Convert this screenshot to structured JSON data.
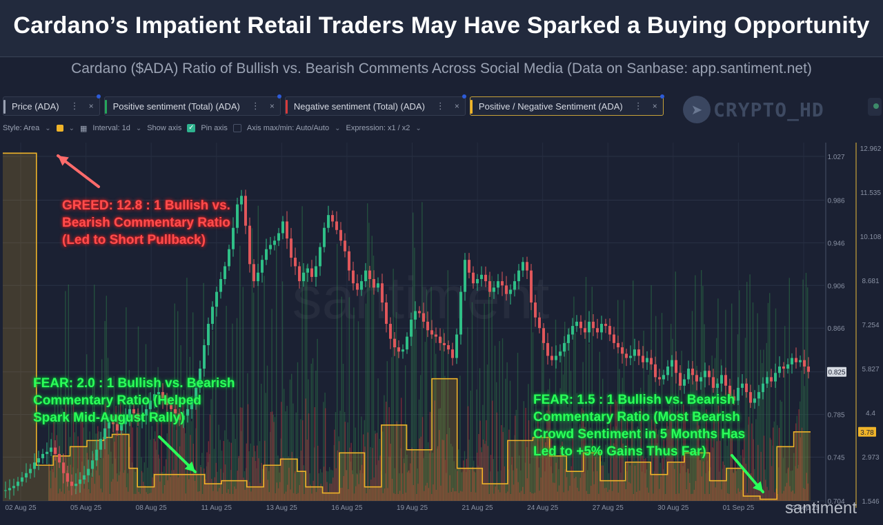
{
  "header": {
    "title": "Cardano’s Impatient Retail Traders May Have Sparked a Buying Opportunity",
    "subtitle": "Cardano ($ADA) Ratio of Bullish vs. Bearish Comments Across Social Media (Data on Sanbase: app.santiment.net)"
  },
  "metrics": [
    {
      "label": "Price (ADA)",
      "color": "#9aa1b2",
      "menu": "⋮",
      "close": "×"
    },
    {
      "label": "Positive sentiment (Total) (ADA)",
      "color": "#26a65b",
      "menu": "⋮",
      "close": "×"
    },
    {
      "label": "Negative sentiment (Total) (ADA)",
      "color": "#d63b3b",
      "menu": "⋮",
      "close": "×"
    },
    {
      "label": "Positive / Negative Sentiment (ADA)",
      "color": "#f0b429",
      "menu": "⋮",
      "close": "×"
    }
  ],
  "options": {
    "style": "Style: Area",
    "interval": "Interval: 1d",
    "show_axis": "Show axis",
    "pin_axis": "Pin axis",
    "axis_minmax": "Axis max/min: Auto/Auto",
    "expression": "Expression: x1 / x2",
    "area_color": "#f0b429"
  },
  "watermarks": {
    "top_right": "CRYPTO_HD",
    "center": "santiment",
    "bottom": "santiment"
  },
  "annotations": {
    "greed": [
      "GREED: 12.8 : 1 Bullish vs.",
      "Bearish Commentary Ratio",
      "(Led to Short Pullback)"
    ],
    "fear_left": [
      "FEAR: 2.0 : 1 Bullish vs. Bearish",
      "Commentary Ratio (Helped",
      "Spark Mid-August Rally)"
    ],
    "fear_right": [
      "FEAR: 1.5 : 1 Bullish vs. Bearish",
      "Commentary Ratio (Most Bearish",
      "Crowd Sentiment in 5 Months Has",
      "Led to +5% Gains Thus Far)"
    ]
  },
  "chart_data": {
    "type": "line",
    "x_ticks": [
      "02 Aug 25",
      "05 Aug 25",
      "08 Aug 25",
      "11 Aug 25",
      "13 Aug 25",
      "16 Aug 25",
      "19 Aug 25",
      "21 Aug 25",
      "24 Aug 25",
      "27 Aug 25",
      "30 Aug 25",
      "01 Sep 25",
      "03 Sep 25"
    ],
    "price_axis": {
      "ticks": [
        "1.027",
        "0.986",
        "0.946",
        "0.906",
        "0.866",
        "0.825",
        "0.785",
        "0.745",
        "0.704"
      ],
      "range": [
        0.704,
        1.027
      ],
      "current": "0.825"
    },
    "ratio_axis": {
      "ticks": [
        "12.962",
        "11.535",
        "10.108",
        "8.681",
        "7.254",
        "5.827",
        "4.4",
        "2.973",
        "1.546"
      ],
      "range": [
        1.546,
        12.962
      ],
      "current": "3.78"
    },
    "series": [
      {
        "name": "Price (ADA)",
        "color": "#2fbf87",
        "down_color": "#e0575b",
        "values": [
          0.714,
          0.716,
          0.718,
          0.722,
          0.726,
          0.73,
          0.734,
          0.74,
          0.744,
          0.748,
          0.75,
          0.754,
          0.748,
          0.74,
          0.73,
          0.722,
          0.718,
          0.72,
          0.724,
          0.728,
          0.734,
          0.742,
          0.752,
          0.762,
          0.772,
          0.778,
          0.776,
          0.77,
          0.776,
          0.782,
          0.79,
          0.786,
          0.78,
          0.784,
          0.79,
          0.798,
          0.804,
          0.806,
          0.8,
          0.794,
          0.79,
          0.786,
          0.78,
          0.784,
          0.79,
          0.798,
          0.81,
          0.828,
          0.85,
          0.87,
          0.886,
          0.9,
          0.912,
          0.924,
          0.94,
          0.96,
          0.982,
          0.99,
          0.962,
          0.926,
          0.91,
          0.918,
          0.93,
          0.94,
          0.944,
          0.948,
          0.955,
          0.966,
          0.95,
          0.932,
          0.924,
          0.91,
          0.918,
          0.922,
          0.914,
          0.924,
          0.942,
          0.96,
          0.972,
          0.966,
          0.958,
          0.948,
          0.938,
          0.92,
          0.908,
          0.902,
          0.91,
          0.92,
          0.912,
          0.904,
          0.908,
          0.89,
          0.87,
          0.856,
          0.848,
          0.844,
          0.846,
          0.858,
          0.874,
          0.882,
          0.88,
          0.872,
          0.864,
          0.86,
          0.858,
          0.852,
          0.85,
          0.846,
          0.838,
          0.86,
          0.9,
          0.93,
          0.918,
          0.908,
          0.912,
          0.916,
          0.91,
          0.9,
          0.904,
          0.91,
          0.906,
          0.898,
          0.902,
          0.91,
          0.92,
          0.928,
          0.92,
          0.89,
          0.876,
          0.866,
          0.852,
          0.84,
          0.836,
          0.84,
          0.844,
          0.852,
          0.86,
          0.868,
          0.872,
          0.866,
          0.862,
          0.872,
          0.866,
          0.862,
          0.87,
          0.868,
          0.86,
          0.852,
          0.848,
          0.842,
          0.838,
          0.84,
          0.846,
          0.84,
          0.834,
          0.838,
          0.832,
          0.82,
          0.818,
          0.822,
          0.83,
          0.836,
          0.824,
          0.812,
          0.818,
          0.828,
          0.822,
          0.816,
          0.82,
          0.826,
          0.82,
          0.81,
          0.814,
          0.822,
          0.812,
          0.802,
          0.798,
          0.81,
          0.814,
          0.806,
          0.796,
          0.8,
          0.806,
          0.814,
          0.82,
          0.816,
          0.824,
          0.83,
          0.828,
          0.832,
          0.838,
          0.834,
          0.836,
          0.83,
          0.825
        ]
      },
      {
        "name": "Positive / Negative Sentiment (ADA)",
        "color": "#f0b429",
        "values": [
          12.8,
          12.8,
          12.8,
          12.8,
          2.7,
          2.7,
          3.0,
          3.0,
          3.3,
          3.3,
          3.5,
          3.5,
          3.6,
          3.7,
          3.7,
          2.6,
          2.0,
          2.0,
          2.4,
          2.4,
          2.4,
          2.4,
          2.4,
          2.4,
          2.1,
          2.1,
          2.2,
          2.2,
          2.2,
          2.0,
          2.0,
          2.7,
          2.7,
          2.9,
          2.9,
          2.5,
          2.0,
          2.0,
          1.8,
          1.8,
          3.1,
          3.1,
          3.1,
          2.0,
          2.0,
          4.0,
          4.0,
          4.0,
          3.2,
          3.2,
          3.2,
          5.5,
          5.5,
          5.5,
          2.6,
          2.6,
          2.6,
          2.1,
          2.1,
          2.1,
          3.5,
          3.5,
          3.5,
          3.6,
          3.6,
          3.0,
          3.0,
          2.5,
          2.5,
          3.1,
          3.1,
          2.2,
          2.2,
          2.2,
          2.8,
          2.8,
          2.8,
          2.4,
          2.4,
          2.8,
          2.8,
          3.1,
          3.1,
          3.1,
          2.2,
          2.2,
          2.6,
          2.6,
          1.7,
          1.7,
          1.6,
          1.6,
          3.3,
          3.3,
          3.78,
          3.78
        ]
      }
    ]
  }
}
